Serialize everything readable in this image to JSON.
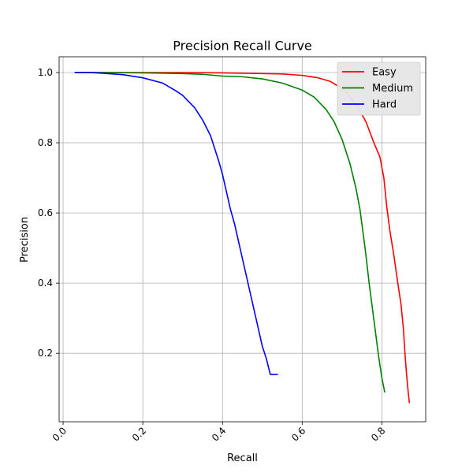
{
  "chart_data": {
    "type": "line",
    "title": "Precision Recall Curve",
    "xlabel": "Recall",
    "ylabel": "Precision",
    "xlim": [
      -0.01,
      0.91
    ],
    "ylim": [
      0.005,
      1.045
    ],
    "xticks": [
      0.0,
      0.2,
      0.4,
      0.6,
      0.8
    ],
    "xtick_labels": [
      "0.0",
      "0.2",
      "0.4",
      "0.6",
      "0.8"
    ],
    "xtick_rotation": 45,
    "yticks": [
      0.2,
      0.4,
      0.6,
      0.8,
      1.0
    ],
    "ytick_labels": [
      "0.2",
      "0.4",
      "0.6",
      "0.8",
      "1.0"
    ],
    "grid": true,
    "legend_position": "top-right",
    "series": [
      {
        "name": "Easy",
        "color": "#ff0000",
        "points": [
          [
            0.03,
            1.0
          ],
          [
            0.1,
            1.0
          ],
          [
            0.2,
            1.0
          ],
          [
            0.3,
            1.0
          ],
          [
            0.4,
            0.999
          ],
          [
            0.5,
            0.997
          ],
          [
            0.55,
            0.996
          ],
          [
            0.6,
            0.992
          ],
          [
            0.64,
            0.985
          ],
          [
            0.67,
            0.975
          ],
          [
            0.7,
            0.955
          ],
          [
            0.72,
            0.93
          ],
          [
            0.74,
            0.9
          ],
          [
            0.76,
            0.86
          ],
          [
            0.78,
            0.8
          ],
          [
            0.795,
            0.76
          ],
          [
            0.805,
            0.7
          ],
          [
            0.812,
            0.62
          ],
          [
            0.82,
            0.55
          ],
          [
            0.83,
            0.48
          ],
          [
            0.84,
            0.4
          ],
          [
            0.848,
            0.34
          ],
          [
            0.854,
            0.27
          ],
          [
            0.858,
            0.2
          ],
          [
            0.862,
            0.14
          ],
          [
            0.866,
            0.09
          ],
          [
            0.869,
            0.06
          ]
        ]
      },
      {
        "name": "Medium",
        "color": "#008000",
        "points": [
          [
            0.03,
            1.0
          ],
          [
            0.1,
            1.0
          ],
          [
            0.2,
            0.999
          ],
          [
            0.3,
            0.997
          ],
          [
            0.35,
            0.995
          ],
          [
            0.4,
            0.99
          ],
          [
            0.45,
            0.988
          ],
          [
            0.5,
            0.982
          ],
          [
            0.55,
            0.97
          ],
          [
            0.6,
            0.95
          ],
          [
            0.63,
            0.93
          ],
          [
            0.66,
            0.895
          ],
          [
            0.68,
            0.86
          ],
          [
            0.7,
            0.81
          ],
          [
            0.72,
            0.74
          ],
          [
            0.735,
            0.67
          ],
          [
            0.745,
            0.61
          ],
          [
            0.752,
            0.55
          ],
          [
            0.76,
            0.48
          ],
          [
            0.768,
            0.4
          ],
          [
            0.776,
            0.33
          ],
          [
            0.784,
            0.26
          ],
          [
            0.792,
            0.19
          ],
          [
            0.8,
            0.13
          ],
          [
            0.807,
            0.09
          ]
        ]
      },
      {
        "name": "Hard",
        "color": "#0000ff",
        "points": [
          [
            0.03,
            1.0
          ],
          [
            0.07,
            1.0
          ],
          [
            0.1,
            0.998
          ],
          [
            0.15,
            0.994
          ],
          [
            0.2,
            0.985
          ],
          [
            0.25,
            0.97
          ],
          [
            0.28,
            0.95
          ],
          [
            0.3,
            0.935
          ],
          [
            0.33,
            0.9
          ],
          [
            0.35,
            0.865
          ],
          [
            0.37,
            0.82
          ],
          [
            0.38,
            0.785
          ],
          [
            0.39,
            0.75
          ],
          [
            0.4,
            0.71
          ],
          [
            0.41,
            0.66
          ],
          [
            0.42,
            0.61
          ],
          [
            0.43,
            0.57
          ],
          [
            0.44,
            0.52
          ],
          [
            0.45,
            0.47
          ],
          [
            0.46,
            0.42
          ],
          [
            0.47,
            0.37
          ],
          [
            0.48,
            0.32
          ],
          [
            0.49,
            0.27
          ],
          [
            0.5,
            0.22
          ],
          [
            0.51,
            0.185
          ],
          [
            0.52,
            0.14
          ],
          [
            0.538,
            0.14
          ]
        ]
      }
    ]
  }
}
